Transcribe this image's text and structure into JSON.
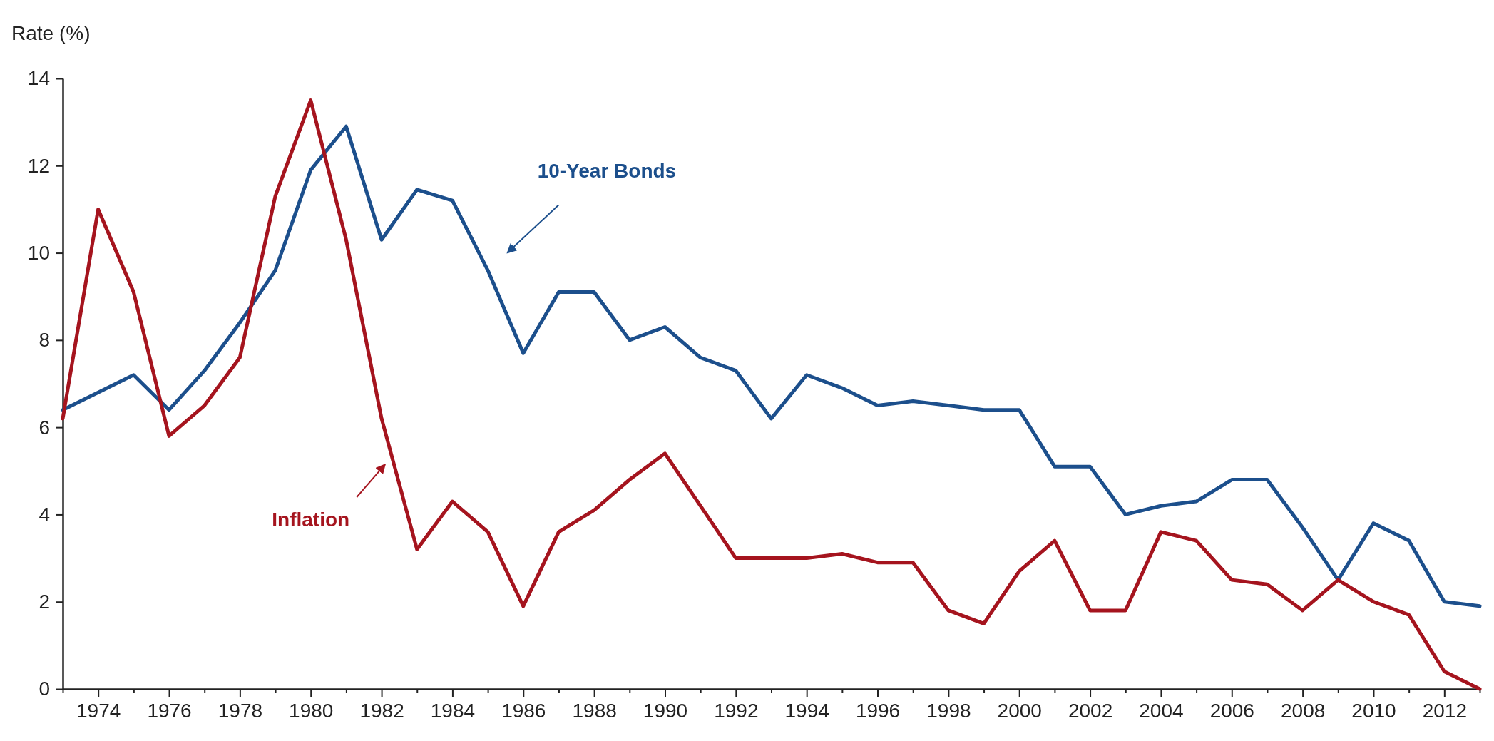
{
  "chart_data": {
    "type": "line",
    "ylabel": "Rate (%)",
    "x": [
      1973,
      1974,
      1975,
      1976,
      1977,
      1978,
      1979,
      1980,
      1981,
      1982,
      1983,
      1984,
      1985,
      1986,
      1987,
      1988,
      1989,
      1990,
      1991,
      1992,
      1993,
      1994,
      1995,
      1996,
      1997,
      1998,
      1999,
      2000,
      2001,
      2002,
      2003,
      2004,
      2005,
      2006,
      2007,
      2008,
      2009,
      2010,
      2011,
      2012,
      2013
    ],
    "series": [
      {
        "name": "10-Year Bonds",
        "color": "#1c4f8c",
        "values": [
          6.4,
          6.8,
          7.2,
          6.4,
          7.3,
          8.4,
          9.6,
          11.9,
          12.9,
          10.3,
          11.45,
          11.2,
          9.6,
          7.7,
          9.1,
          9.1,
          8.0,
          8.3,
          7.6,
          7.3,
          6.2,
          7.2,
          6.9,
          6.5,
          6.6,
          6.5,
          6.4,
          6.4,
          5.1,
          5.1,
          4.0,
          4.2,
          4.3,
          4.8,
          4.8,
          3.7,
          2.5,
          3.8,
          3.4,
          2.0,
          1.9
        ]
      },
      {
        "name": "Inflation",
        "color": "#a5141e",
        "values": [
          6.2,
          11.0,
          9.1,
          5.8,
          6.5,
          7.6,
          11.3,
          13.5,
          10.3,
          6.2,
          3.2,
          4.3,
          3.6,
          1.9,
          3.6,
          4.1,
          4.8,
          5.4,
          4.2,
          3.0,
          3.0,
          3.0,
          3.1,
          2.9,
          2.9,
          1.8,
          1.5,
          2.7,
          3.4,
          1.8,
          1.8,
          3.6,
          3.4,
          2.5,
          2.4,
          1.8,
          2.5,
          2.0,
          1.7,
          0.4,
          0.0
        ]
      }
    ],
    "xlim": [
      1973,
      2013
    ],
    "xticks": [
      {
        "value": 1973,
        "label": null
      },
      1974,
      {
        "value": 1975,
        "label": null
      },
      1976,
      {
        "value": 1977,
        "label": null
      },
      1978,
      {
        "value": 1979,
        "label": null
      },
      1980,
      {
        "value": 1981,
        "label": null
      },
      1982,
      {
        "value": 1983,
        "label": null
      },
      1984,
      {
        "value": 1985,
        "label": null
      },
      1986,
      {
        "value": 1987,
        "label": null
      },
      1988,
      {
        "value": 1989,
        "label": null
      },
      1990,
      {
        "value": 1991,
        "label": null
      },
      1992,
      {
        "value": 1993,
        "label": null
      },
      1994,
      {
        "value": 1995,
        "label": null
      },
      1996,
      {
        "value": 1997,
        "label": null
      },
      1998,
      {
        "value": 1999,
        "label": null
      },
      2000,
      {
        "value": 2001,
        "label": null
      },
      2002,
      {
        "value": 2003,
        "label": null
      },
      2004,
      {
        "value": 2005,
        "label": null
      },
      2006,
      {
        "value": 2007,
        "label": null
      },
      2008,
      {
        "value": 2009,
        "label": null
      },
      2010,
      {
        "value": 2011,
        "label": null
      },
      2012,
      {
        "value": 2013,
        "label": null
      }
    ],
    "ylim": [
      0,
      14
    ],
    "yticks": [
      0,
      2,
      4,
      6,
      8,
      10,
      12,
      14
    ],
    "grid": false,
    "legend": false,
    "marker": "none",
    "line_style": "solid"
  }
}
